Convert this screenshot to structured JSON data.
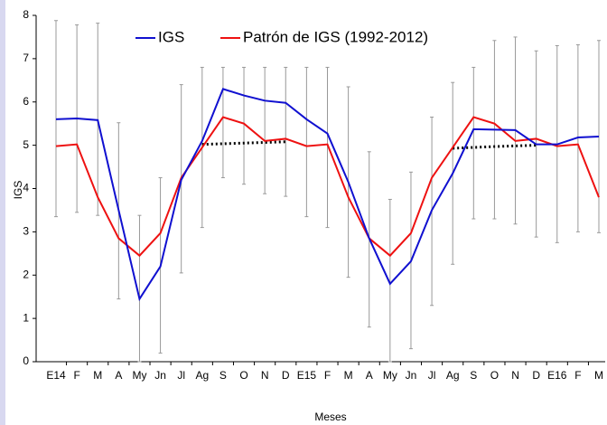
{
  "chart_data": {
    "type": "line",
    "y_label": "IGS",
    "x_label": "Meses",
    "categories": [
      "E14",
      "F",
      "M",
      "A",
      "My",
      "Jn",
      "Jl",
      "Ag",
      "S",
      "O",
      "N",
      "D",
      "E15",
      "F",
      "M",
      "A",
      "My",
      "Jn",
      "Jl",
      "Ag",
      "S",
      "O",
      "N",
      "D",
      "E16",
      "F",
      "M"
    ],
    "series": [
      {
        "name": "IGS",
        "color": "#1010d0",
        "values": [
          5.6,
          5.62,
          5.58,
          3.5,
          1.45,
          2.2,
          4.2,
          5.1,
          6.3,
          6.15,
          6.03,
          5.98,
          5.6,
          5.27,
          4.15,
          2.85,
          1.8,
          2.32,
          3.5,
          4.35,
          5.37,
          5.36,
          5.35,
          5.02,
          5.02,
          5.18,
          5.2
        ]
      },
      {
        "name": "Patrón  de IGS (1992-2012)",
        "color": "#ee1111",
        "values": [
          4.98,
          5.02,
          3.8,
          2.85,
          2.45,
          2.97,
          4.25,
          4.95,
          5.65,
          5.5,
          5.1,
          5.15,
          4.98,
          5.02,
          3.8,
          2.85,
          2.45,
          2.97,
          4.25,
          4.95,
          5.65,
          5.5,
          5.1,
          5.15,
          4.98,
          5.02,
          3.8
        ]
      }
    ],
    "error_bars": {
      "color": "#999999",
      "low": [
        3.35,
        3.45,
        3.38,
        1.45,
        0,
        0.2,
        2.05,
        3.1,
        4.25,
        4.1,
        3.88,
        3.82,
        3.35,
        3.1,
        1.95,
        0.8,
        0,
        0.3,
        1.3,
        2.25,
        3.3,
        3.3,
        3.18,
        2.88,
        2.75,
        3.0,
        2.98
      ],
      "high": [
        7.88,
        7.78,
        7.82,
        5.52,
        3.38,
        4.25,
        6.4,
        6.8,
        6.8,
        6.8,
        6.8,
        6.8,
        6.8,
        6.8,
        6.35,
        4.85,
        3.75,
        4.38,
        5.65,
        6.45,
        6.8,
        7.42,
        7.5,
        7.18,
        7.3,
        7.32,
        7.42
      ]
    },
    "trend_lines": [
      {
        "color": "#000000",
        "values": [
          null,
          null,
          null,
          null,
          null,
          null,
          null,
          5.02,
          5.035,
          5.05,
          5.065,
          5.08,
          null,
          null,
          null,
          null,
          null,
          null,
          null,
          null,
          null,
          null,
          null,
          null,
          null,
          null,
          null
        ]
      },
      {
        "color": "#000000",
        "values": [
          null,
          null,
          null,
          null,
          null,
          null,
          null,
          null,
          null,
          null,
          null,
          null,
          null,
          null,
          null,
          null,
          null,
          null,
          null,
          4.93,
          4.95,
          4.97,
          4.985,
          5.0,
          null,
          null,
          null
        ]
      }
    ],
    "ylim": [
      0,
      8
    ],
    "yticks": [
      0,
      1,
      2,
      3,
      4,
      5,
      6,
      7,
      8
    ]
  }
}
